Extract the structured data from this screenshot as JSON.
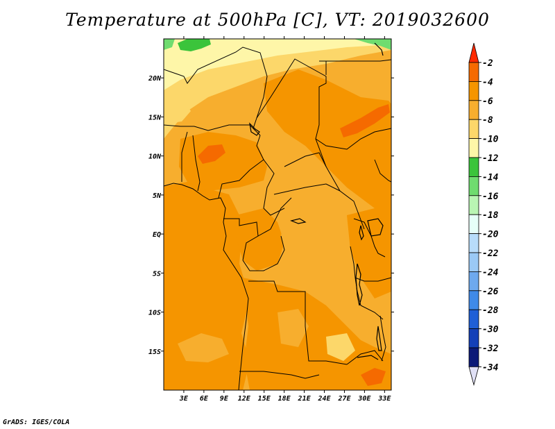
{
  "title": "Temperature at 500hPa [C], VT: 2019032600",
  "credit": "GrADS: IGES/COLA",
  "map": {
    "projection": "latlon",
    "lon_range": [
      0,
      34
    ],
    "lat_range": [
      -20,
      25
    ],
    "lon_ticks": [
      "3E",
      "6E",
      "9E",
      "12E",
      "15E",
      "18E",
      "21E",
      "24E",
      "27E",
      "30E",
      "33E"
    ],
    "lat_ticks": [
      "20N",
      "15N",
      "10N",
      "5N",
      "EQ",
      "5S",
      "10S",
      "15S"
    ],
    "variable": "temperature",
    "level": "500hPa",
    "units": "C",
    "valid_time": "2019032600"
  },
  "colorbar": {
    "labels": [
      "-2",
      "-4",
      "-6",
      "-8",
      "-10",
      "-12",
      "-14",
      "-16",
      "-18",
      "-20",
      "-22",
      "-24",
      "-26",
      "-28",
      "-30",
      "-32",
      "-34"
    ],
    "colors": [
      "#ff2a00",
      "#f56a00",
      "#f59500",
      "#f7ae2e",
      "#fcd76a",
      "#fef6a8",
      "#3bc43b",
      "#6fdc6f",
      "#b9f5b3",
      "#e6fff8",
      "#b8dcfa",
      "#9bc9f5",
      "#6ea9ee",
      "#3f8ae8",
      "#1f5fd6",
      "#1440b8",
      "#0c1a78",
      "#e0e0f5"
    ]
  }
}
